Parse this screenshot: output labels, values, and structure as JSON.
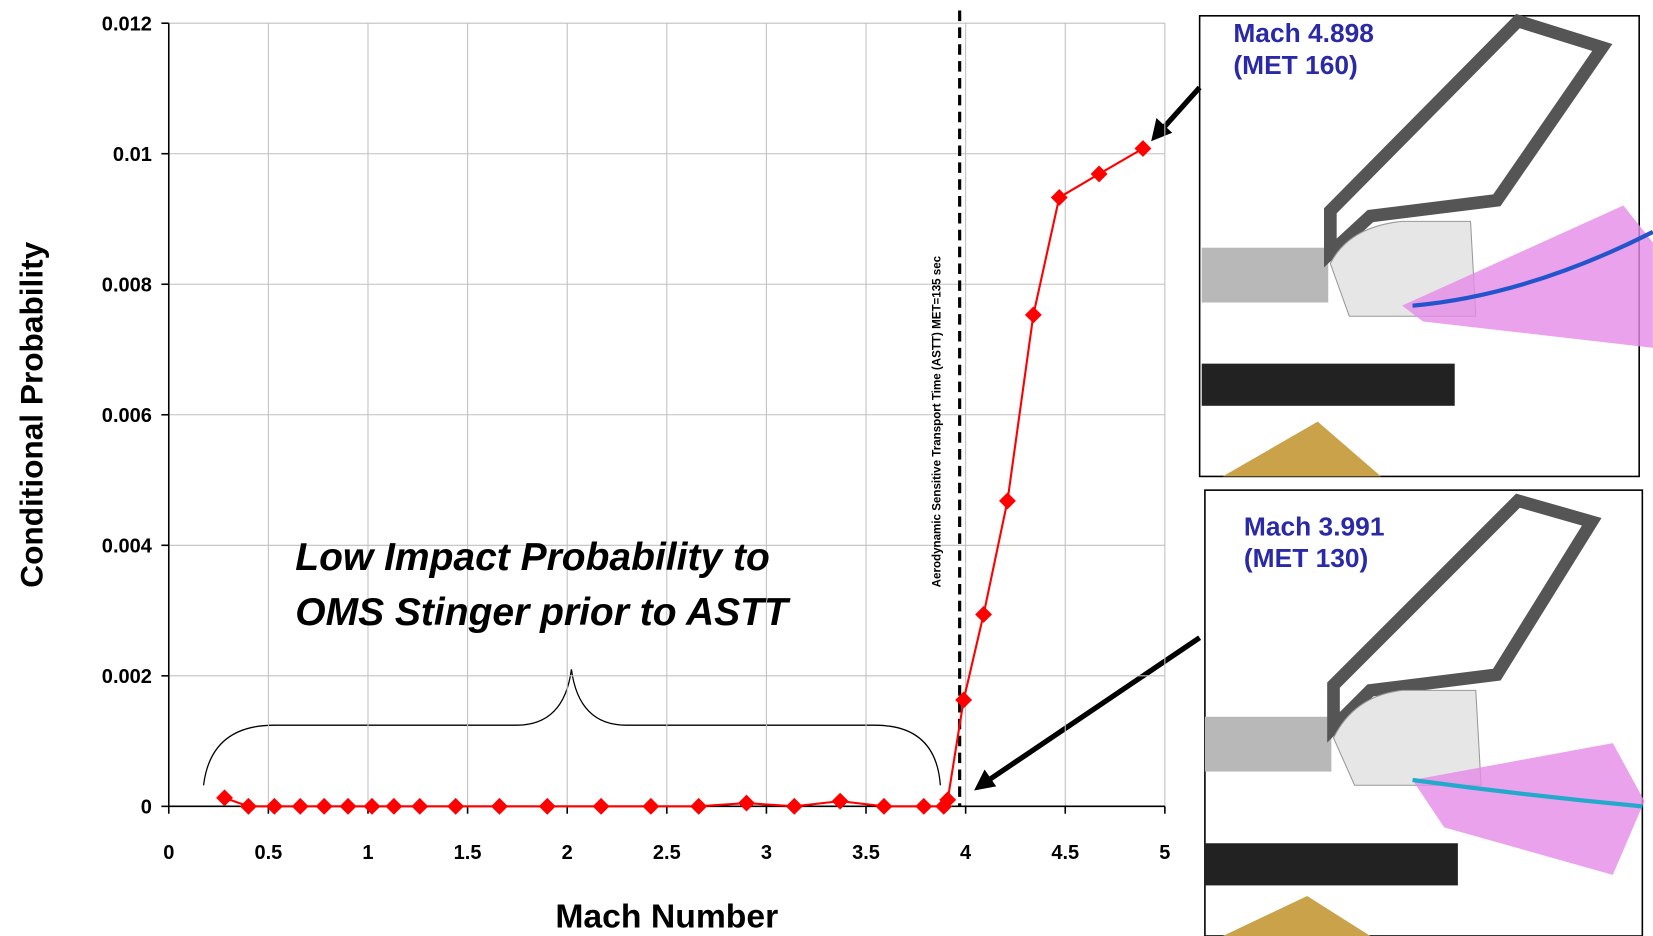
{
  "chart_data": {
    "type": "line",
    "x_label": "Mach Number",
    "y_label": "Conditional Probability",
    "x": [
      0.28,
      0.4,
      0.53,
      0.66,
      0.78,
      0.9,
      1.02,
      1.13,
      1.26,
      1.44,
      1.66,
      1.9,
      2.17,
      2.42,
      2.66,
      2.9,
      3.14,
      3.37,
      3.59,
      3.79,
      3.89,
      3.91,
      3.99,
      4.09,
      4.21,
      4.34,
      4.47,
      4.67,
      4.89
    ],
    "series": [
      {
        "color": "#ff0000",
        "values": [
          0.00013,
          0,
          0,
          0,
          0,
          0,
          0,
          0,
          0,
          0,
          0,
          0,
          0,
          0,
          0,
          5e-05,
          0,
          8e-05,
          0,
          0,
          0,
          0.0001,
          0.00163,
          0.00294,
          0.00468,
          0.00753,
          0.00933,
          0.00969,
          0.01008
        ]
      }
    ],
    "xlim": [
      0,
      5
    ],
    "ylim": [
      0,
      0.012
    ],
    "xticks": [
      0,
      0.5,
      1,
      1.5,
      2,
      2.5,
      3,
      3.5,
      4,
      4.5,
      5
    ],
    "yticks": [
      0,
      0.002,
      0.004,
      0.006,
      0.008,
      0.01,
      0.012
    ],
    "grid": true,
    "vline": {
      "x": 3.97,
      "label": "Aerodynamic Sensitive Transport Time (ASTT) MET=135 sec"
    },
    "annotation": [
      "Low Impact Probability to",
      "OMS Stinger prior to ASTT"
    ],
    "insets": [
      {
        "lines": [
          "Mach 4.898",
          "(MET 160)"
        ]
      },
      {
        "lines": [
          "Mach 3.991",
          "(MET 130)"
        ]
      }
    ]
  }
}
